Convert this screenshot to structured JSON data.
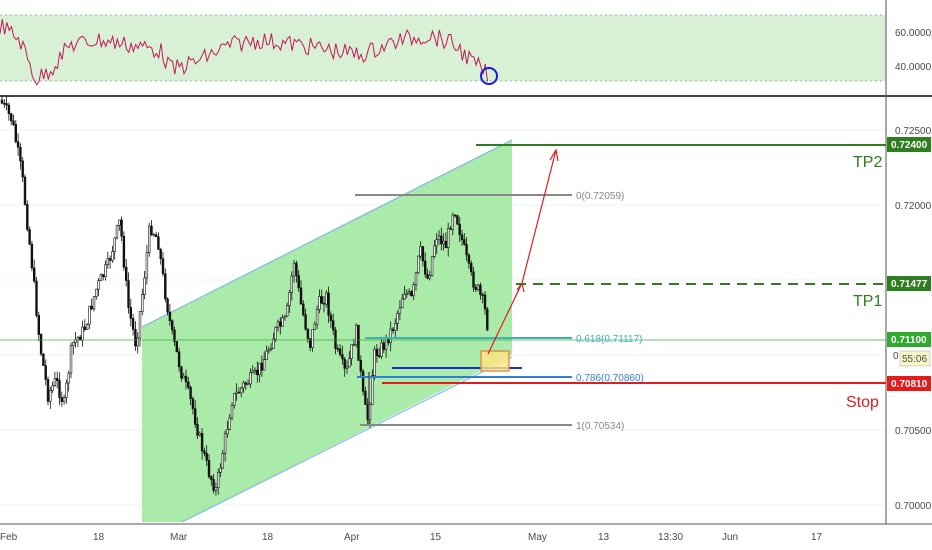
{
  "chart_data": [
    {
      "panel": "rsi",
      "type": "line",
      "ylim": [
        30,
        70
      ],
      "band": [
        30,
        70
      ],
      "y_ticks": [
        {
          "label": "60.0000",
          "value": 60
        },
        {
          "label": "40.0000",
          "value": 40
        }
      ],
      "colors": {
        "line": "#c2185b",
        "band": "#d8f0d4",
        "circle": "#1a1adb"
      }
    },
    {
      "panel": "price",
      "type": "candlestick",
      "ylim": [
        0.6995,
        0.7258
      ],
      "x_ticks": [
        "Feb",
        "18",
        "Mar",
        "18",
        "Apr",
        "15",
        "May",
        "13",
        "13:30",
        "Jun",
        "17"
      ],
      "y_ticks": [
        {
          "label": "0.72500",
          "value": 0.725
        },
        {
          "label": "0.72000",
          "value": 0.72
        },
        {
          "label": "0.70500",
          "value": 0.705
        },
        {
          "label": "0.70000",
          "value": 0.7
        }
      ],
      "channel": {
        "color": "#9be89b",
        "border": "#7db8e8"
      },
      "fib_levels": [
        {
          "label": "0(0.72059)",
          "value": 0.72059,
          "color": "#888888"
        },
        {
          "label": "0.618(0.71117)",
          "value": 0.71117,
          "color": "#3bb3b3"
        },
        {
          "label": "0.786(0.70860)",
          "value": 0.7086,
          "color": "#2f7fd6"
        },
        {
          "label": "1(0.70534)",
          "value": 0.70534,
          "color": "#888888"
        }
      ],
      "levels": [
        {
          "name": "TP2",
          "value": 0.724,
          "tag": "0.72400",
          "color": "#2e7d1e",
          "style": "solid"
        },
        {
          "name": "TP1",
          "value": 0.71477,
          "tag": "0.71477",
          "color": "#2e7d1e",
          "style": "dashed"
        },
        {
          "name": "Stop",
          "value": 0.7081,
          "tag": "0.70810",
          "color": "#e31b1b",
          "style": "solid"
        }
      ],
      "current_price": {
        "tag": "0.71100",
        "value": 0.711,
        "timer_prefix": "0",
        "timer": "55:06",
        "color": "#2faa2f"
      }
    }
  ]
}
